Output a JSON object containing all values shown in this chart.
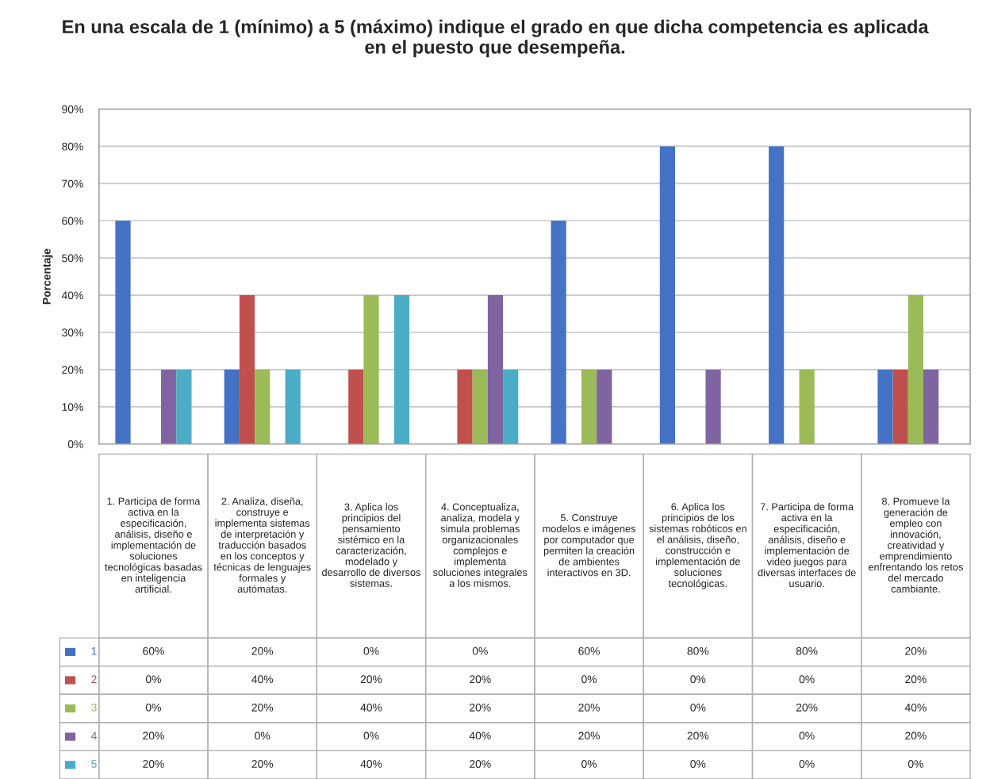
{
  "chart_data": {
    "type": "bar",
    "title": "En una escala de 1 (mínimo) a 5 (máximo) indique el grado en que dicha competencia es aplicada\nen el puesto que desempeña.",
    "ylabel": "Porcentaje",
    "categories": [
      "1. Participa de forma\nactiva en la\nespecificación,\nanálisis, diseño e\nimplementación de\nsoluciones\ntecnológicas basadas\nen inteligencia\nartificial.",
      "2. Analiza, diseña,\nconstruye e\nimplementa sistemas\nde interpretación y\ntraducción basados\nen los conceptos y\ntécnicas de lenguajes\nformales y\nautómatas.",
      "3. Aplica los\nprincipios del\npensamiento\nsistémico en la\ncaracterización,\nmodelado y\ndesarrollo de diversos\nsistemas.",
      "4. Conceptualiza,\nanaliza, modela y\nsimula problemas\norganizacionales\ncomplejos e\nimplementa\nsoluciones integrales\na los mismos.",
      "5. Construye\nmodelos e imágenes\npor computador que\npermiten la creación\nde ambientes\ninteractivos en 3D.",
      "6. Aplica los\nprincipios de los\nsistemas robóticos en\nel análisis, diseño,\nconstrucción e\nimplementación de\nsoluciones\ntecnológicas.",
      "7. Participa de forma\nactiva en la\nespecificación,\nanálisis, diseño e\nimplementación de\nvideo juegos para\ndiversas interfaces de\nusuario.",
      "8. Promueve la\ngeneración de\nempleo con\ninnovación,\ncreatividad y\nemprendimiento\nenfrentando los retos\ndel mercado\ncambiante."
    ],
    "series": [
      {
        "name": "1",
        "color": "#4472c4",
        "values": [
          60,
          20,
          0,
          0,
          60,
          80,
          80,
          20
        ],
        "value_labels": [
          "60%",
          "20%",
          "0%",
          "0%",
          "60%",
          "80%",
          "80%",
          "20%"
        ]
      },
      {
        "name": "2",
        "color": "#c0504d",
        "values": [
          0,
          40,
          20,
          20,
          0,
          0,
          0,
          20
        ],
        "value_labels": [
          "0%",
          "40%",
          "20%",
          "20%",
          "0%",
          "0%",
          "0%",
          "20%"
        ]
      },
      {
        "name": "3",
        "color": "#9bbb59",
        "values": [
          0,
          20,
          40,
          20,
          20,
          0,
          20,
          40
        ],
        "value_labels": [
          "0%",
          "20%",
          "40%",
          "20%",
          "20%",
          "0%",
          "20%",
          "40%"
        ]
      },
      {
        "name": "4",
        "color": "#8064a2",
        "values": [
          20,
          0,
          0,
          40,
          20,
          20,
          0,
          20
        ],
        "value_labels": [
          "20%",
          "0%",
          "0%",
          "40%",
          "20%",
          "20%",
          "0%",
          "20%"
        ]
      },
      {
        "name": "5",
        "color": "#4bacc6",
        "values": [
          20,
          20,
          40,
          20,
          0,
          0,
          0,
          0
        ],
        "value_labels": [
          "20%",
          "20%",
          "40%",
          "20%",
          "0%",
          "0%",
          "0%",
          "0%"
        ]
      }
    ],
    "ylim": [
      0,
      90
    ],
    "yticks": [
      {
        "value": 0,
        "label": "0%"
      },
      {
        "value": 10,
        "label": "10%"
      },
      {
        "value": 20,
        "label": "20%"
      },
      {
        "value": 30,
        "label": "30%"
      },
      {
        "value": 40,
        "label": "40%"
      },
      {
        "value": 50,
        "label": "50%"
      },
      {
        "value": 60,
        "label": "60%"
      },
      {
        "value": 70,
        "label": "70%"
      },
      {
        "value": 80,
        "label": "80%"
      },
      {
        "value": 90,
        "label": "90%"
      }
    ],
    "grid": "y",
    "legend": "bottom",
    "tick_labels": "y"
  }
}
